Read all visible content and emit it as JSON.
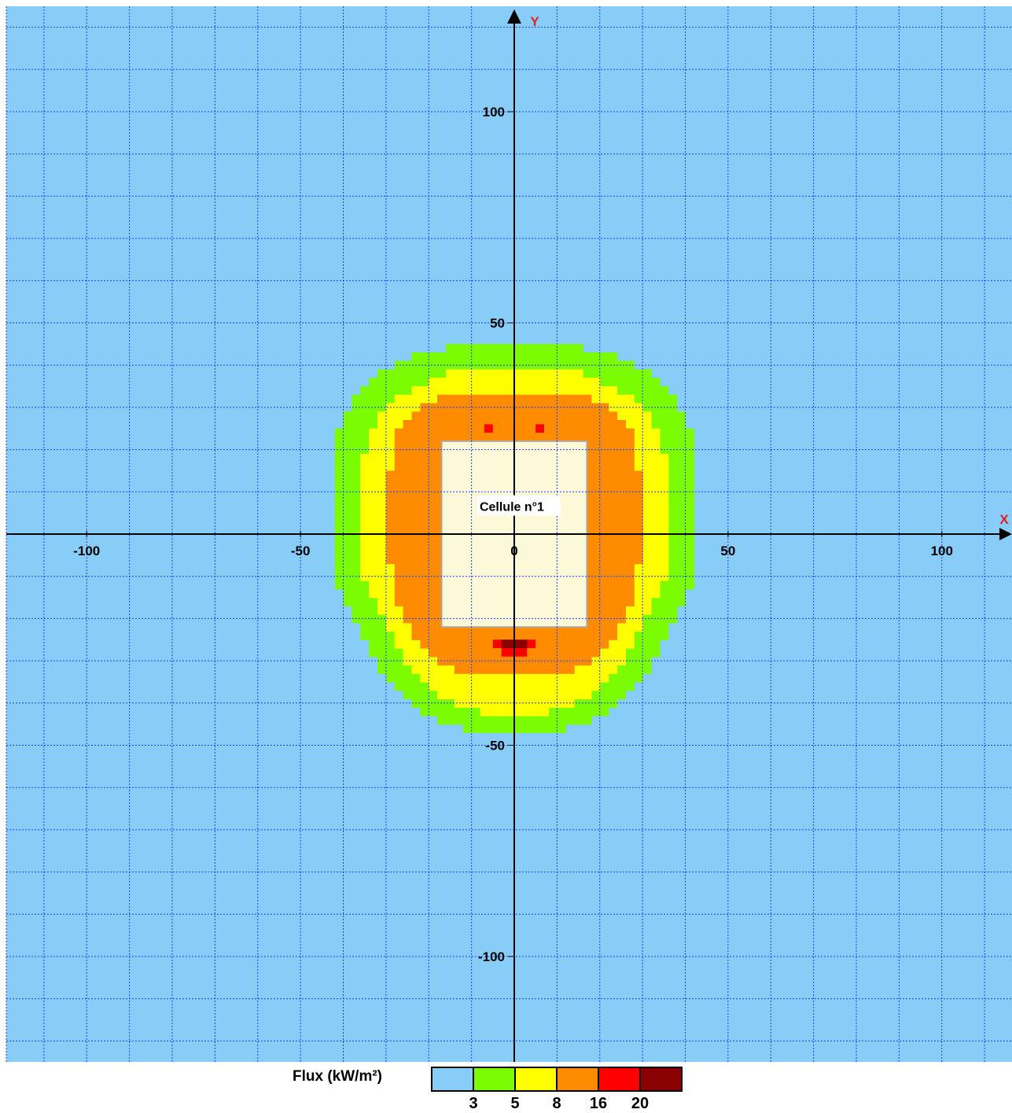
{
  "chart_data": {
    "type": "heatmap",
    "xlabel": "X",
    "ylabel": "Y",
    "xlim": [
      -119,
      118
    ],
    "ylim": [
      -125,
      124
    ],
    "grid": true,
    "x_ticks": [
      -100,
      -50,
      0,
      50,
      100
    ],
    "y_ticks": [
      100,
      50,
      -50,
      -100
    ],
    "x_tick_labels": [
      "-100",
      "-50",
      "0",
      "50",
      "100"
    ],
    "y_tick_labels": [
      "100",
      "50",
      "-50",
      "-100"
    ],
    "grid_spacing": 10,
    "cell_size": 2,
    "zone_label": "Cellule n°1",
    "cell_rect": {
      "x": [
        -17,
        17
      ],
      "y": [
        -22,
        22
      ]
    },
    "bands": [
      {
        "class": 1,
        "ymax": 45,
        "ymin": -47,
        "widths": [
          [
            45,
            10
          ],
          [
            44,
            16
          ],
          [
            43,
            20
          ],
          [
            42,
            24
          ],
          [
            40,
            28
          ],
          [
            38,
            32
          ],
          [
            36,
            34
          ],
          [
            34,
            36
          ],
          [
            32,
            38
          ],
          [
            30,
            38
          ],
          [
            28,
            40
          ],
          [
            26,
            40
          ],
          [
            24,
            41
          ],
          [
            22,
            41
          ],
          [
            20,
            42
          ],
          [
            10,
            42
          ],
          [
            0,
            42
          ],
          [
            -10,
            42
          ],
          [
            -12,
            41
          ],
          [
            -14,
            40
          ],
          [
            -18,
            38
          ],
          [
            -22,
            36
          ],
          [
            -26,
            34
          ],
          [
            -30,
            32
          ],
          [
            -34,
            30
          ],
          [
            -38,
            26
          ],
          [
            -42,
            22
          ],
          [
            -44,
            18
          ],
          [
            -46,
            12
          ],
          [
            -47,
            6
          ]
        ]
      },
      {
        "class": 2,
        "ymax": 39,
        "ymin": -42,
        "widths": [
          [
            39,
            12
          ],
          [
            38,
            16
          ],
          [
            36,
            20
          ],
          [
            34,
            24
          ],
          [
            32,
            28
          ],
          [
            30,
            30
          ],
          [
            26,
            32
          ],
          [
            22,
            34
          ],
          [
            18,
            35
          ],
          [
            12,
            36
          ],
          [
            6,
            36
          ],
          [
            0,
            36
          ],
          [
            -6,
            36
          ],
          [
            -10,
            35
          ],
          [
            -14,
            33
          ],
          [
            -18,
            31
          ],
          [
            -22,
            29
          ],
          [
            -26,
            27
          ],
          [
            -30,
            25
          ],
          [
            -34,
            22
          ],
          [
            -38,
            18
          ],
          [
            -40,
            14
          ],
          [
            -42,
            8
          ]
        ]
      },
      {
        "class": 3,
        "ymax": 33,
        "ymin": -33,
        "widths": [
          [
            33,
            14
          ],
          [
            32,
            18
          ],
          [
            30,
            22
          ],
          [
            28,
            24
          ],
          [
            26,
            26
          ],
          [
            24,
            27
          ],
          [
            20,
            28
          ],
          [
            14,
            29
          ],
          [
            6,
            29
          ],
          [
            0,
            29
          ],
          [
            -6,
            29
          ],
          [
            -12,
            28
          ],
          [
            -16,
            27
          ],
          [
            -20,
            25
          ],
          [
            -24,
            23
          ],
          [
            -28,
            20
          ],
          [
            -30,
            17
          ],
          [
            -32,
            14
          ],
          [
            -33,
            10
          ]
        ]
      }
    ],
    "hotspots": [
      {
        "class": 4,
        "x": [
          -7,
          -5
        ],
        "y": [
          24,
          26
        ]
      },
      {
        "class": 4,
        "x": [
          5,
          7
        ],
        "y": [
          24,
          26
        ]
      },
      {
        "class": 4,
        "x": [
          -5,
          5
        ],
        "y": [
          -27,
          -25
        ]
      },
      {
        "class": 4,
        "x": [
          -3,
          3
        ],
        "y": [
          -29,
          -27
        ]
      },
      {
        "class": 5,
        "x": [
          -3,
          3
        ],
        "y": [
          -27,
          -25
        ]
      }
    ]
  },
  "legend": {
    "title": "Flux (kW/m²)",
    "colors": [
      "#88ccf8",
      "#7cfc00",
      "#ffff00",
      "#ff8c00",
      "#ff0000",
      "#8b0000"
    ],
    "thresholds": [
      "3",
      "5",
      "8",
      "16",
      "20"
    ]
  },
  "colors": {
    "background": "#88ccf8",
    "grid": "#1e3cff",
    "axis": "#000000",
    "cell_fill": "#fbf9d7",
    "cell_border": "#b0a8a0"
  }
}
